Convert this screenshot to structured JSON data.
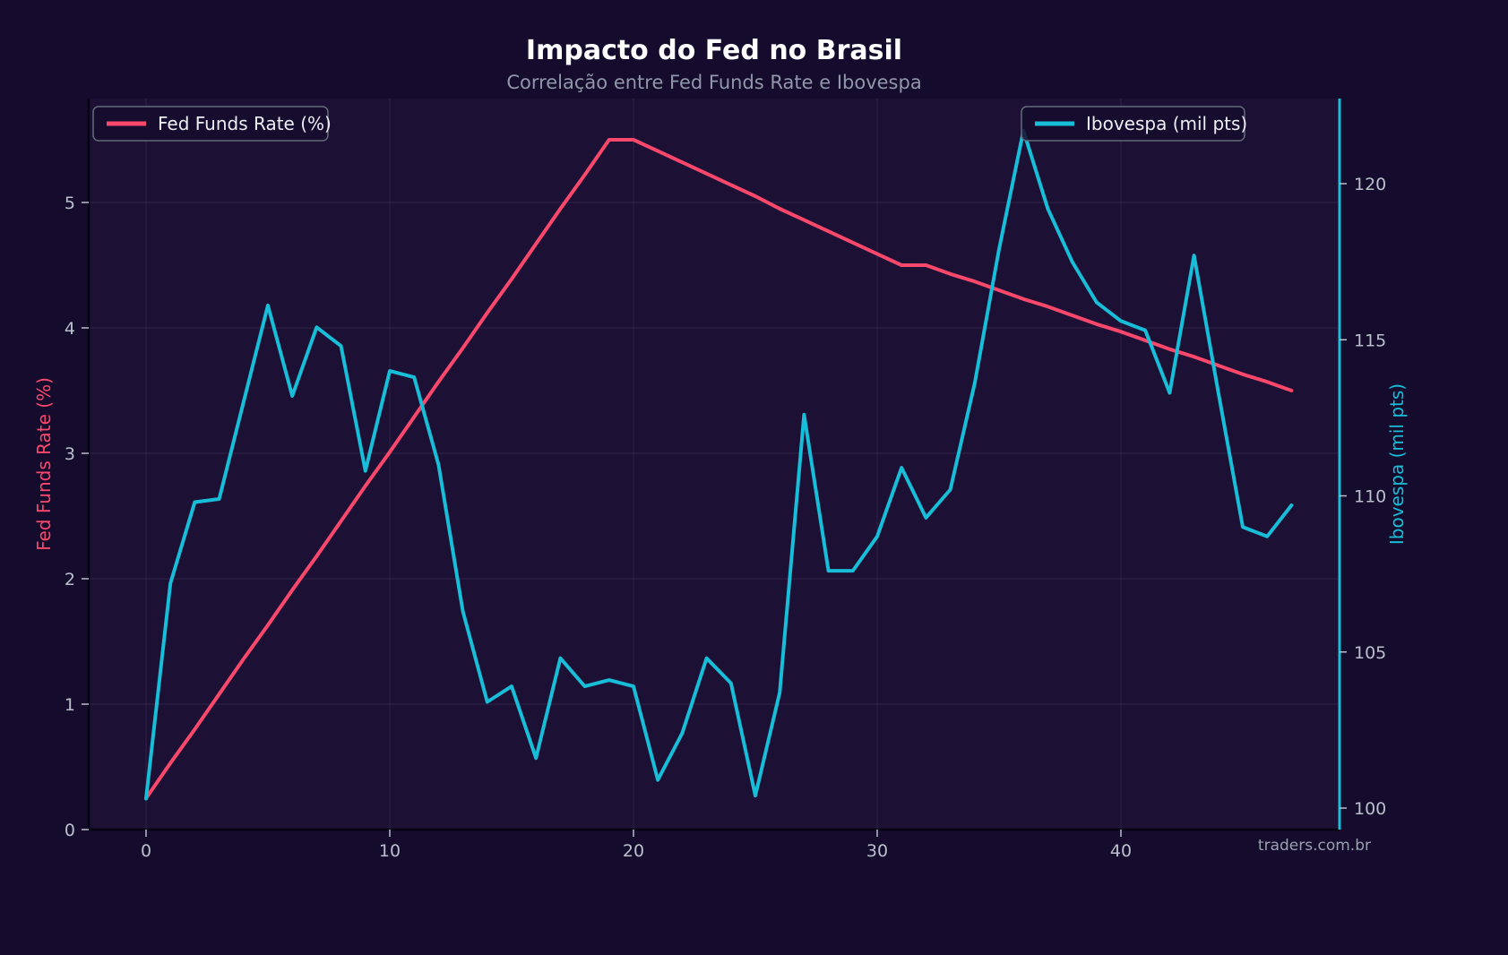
{
  "page": {
    "title": "Impacto do Fed no Brasil",
    "subtitle": "Correlação entre Fed Funds Rate e Ibovespa",
    "watermark": "traders.com.br"
  },
  "chart_data": {
    "type": "line",
    "title": "Impacto do Fed no Brasil",
    "subtitle": "Correlação entre Fed Funds Rate e Ibovespa",
    "background_color": "#150b2d",
    "plot_background_color": "#1c1135",
    "grid": true,
    "x": [
      0,
      1,
      2,
      3,
      4,
      5,
      6,
      7,
      8,
      9,
      10,
      11,
      12,
      13,
      14,
      15,
      16,
      17,
      18,
      19,
      20,
      21,
      22,
      23,
      24,
      25,
      26,
      27,
      28,
      29,
      30,
      31,
      32,
      33,
      34,
      35,
      36,
      37,
      38,
      39,
      40,
      41,
      42,
      43,
      44,
      45,
      46,
      47
    ],
    "x_axis": {
      "ticks": [
        0,
        10,
        20,
        30,
        40
      ],
      "range": [
        -2.35,
        49.35
      ]
    },
    "left_axis": {
      "label": "Fed Funds Rate (%)",
      "color": "#f9486b",
      "ticks": [
        0,
        1,
        2,
        3,
        4,
        5
      ],
      "range": [
        0,
        5.83
      ]
    },
    "right_axis": {
      "label": "Ibovespa (mil pts)",
      "color": "#18bdd8",
      "ticks": [
        100,
        105,
        110,
        115,
        120
      ],
      "range": [
        99.25,
        122.4
      ]
    },
    "legend": [
      {
        "label": "Fed Funds Rate (%)",
        "position": "top-left",
        "color": "#f9486b"
      },
      {
        "label": "Ibovespa (mil pts)",
        "position": "top-right",
        "color": "#18bdd8"
      }
    ],
    "series": [
      {
        "name": "Fed Funds Rate (%)",
        "axis": "left",
        "color": "#f9486b",
        "values": [
          0.25,
          0.53,
          0.8,
          1.08,
          1.36,
          1.63,
          1.91,
          2.18,
          2.46,
          2.74,
          3.01,
          3.29,
          3.57,
          3.84,
          4.12,
          4.39,
          4.67,
          4.95,
          5.22,
          5.5,
          5.5,
          5.41,
          5.32,
          5.23,
          5.14,
          5.05,
          4.95,
          4.86,
          4.77,
          4.68,
          4.59,
          4.5,
          4.5,
          4.43,
          4.37,
          4.3,
          4.23,
          4.17,
          4.1,
          4.03,
          3.97,
          3.9,
          3.83,
          3.77,
          3.7,
          3.63,
          3.57,
          3.5
        ]
      },
      {
        "name": "Ibovespa (mil pts)",
        "axis": "right",
        "color": "#18bdd8",
        "values": [
          100.3,
          107.2,
          109.8,
          109.9,
          113.0,
          116.1,
          113.2,
          115.4,
          114.8,
          110.8,
          114.0,
          113.8,
          111.0,
          106.3,
          103.4,
          103.9,
          101.6,
          104.8,
          103.9,
          104.1,
          103.9,
          100.9,
          102.4,
          104.8,
          104.0,
          100.4,
          103.7,
          112.6,
          107.6,
          107.6,
          108.7,
          110.9,
          109.3,
          110.2,
          113.6,
          117.9,
          121.7,
          119.2,
          117.5,
          116.2,
          115.6,
          115.3,
          113.3,
          117.7,
          113.3,
          109.0,
          108.7,
          109.7
        ]
      }
    ],
    "watermark": "traders.com.br"
  }
}
